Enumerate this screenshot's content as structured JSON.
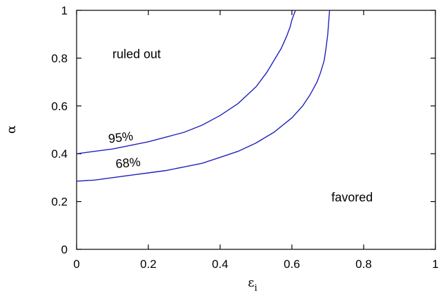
{
  "chart_data": {
    "type": "line",
    "title": "",
    "xlabel": "ε",
    "xlabel_sub": "i",
    "ylabel": "α",
    "xlim": [
      0,
      1
    ],
    "ylim": [
      0,
      1
    ],
    "x_ticks": [
      "0",
      "0.2",
      "0.4",
      "0.6",
      "0.8",
      "1"
    ],
    "y_ticks": [
      "0",
      "0.2",
      "0.4",
      "0.6",
      "0.8",
      "1"
    ],
    "grid": false,
    "series": [
      {
        "name": "95%",
        "color": "#1f1fbf",
        "x": [
          0,
          0.05,
          0.1,
          0.15,
          0.2,
          0.25,
          0.3,
          0.35,
          0.4,
          0.45,
          0.5,
          0.53,
          0.55,
          0.57,
          0.585,
          0.595,
          0.6,
          0.605,
          0.61
        ],
        "y": [
          0.4,
          0.41,
          0.42,
          0.435,
          0.45,
          0.47,
          0.49,
          0.52,
          0.56,
          0.61,
          0.68,
          0.74,
          0.79,
          0.84,
          0.89,
          0.93,
          0.96,
          0.98,
          1.0
        ]
      },
      {
        "name": "68%",
        "color": "#1f1fbf",
        "x": [
          0,
          0.05,
          0.1,
          0.15,
          0.2,
          0.25,
          0.3,
          0.35,
          0.4,
          0.45,
          0.5,
          0.55,
          0.6,
          0.63,
          0.65,
          0.67,
          0.68,
          0.69,
          0.695,
          0.7,
          0.705
        ],
        "y": [
          0.285,
          0.29,
          0.3,
          0.31,
          0.32,
          0.33,
          0.345,
          0.36,
          0.385,
          0.41,
          0.445,
          0.49,
          0.55,
          0.6,
          0.645,
          0.7,
          0.74,
          0.79,
          0.84,
          0.9,
          1.0
        ]
      }
    ],
    "annotations": [
      {
        "id": "ruled_out",
        "text": "ruled out",
        "x": 0.1,
        "y": 0.8
      },
      {
        "id": "favored",
        "text": "favored",
        "x": 0.71,
        "y": 0.2
      },
      {
        "id": "label95",
        "text": "95%",
        "x": 0.09,
        "y": 0.445
      },
      {
        "id": "label68",
        "text": "68%",
        "x": 0.11,
        "y": 0.34
      }
    ]
  }
}
